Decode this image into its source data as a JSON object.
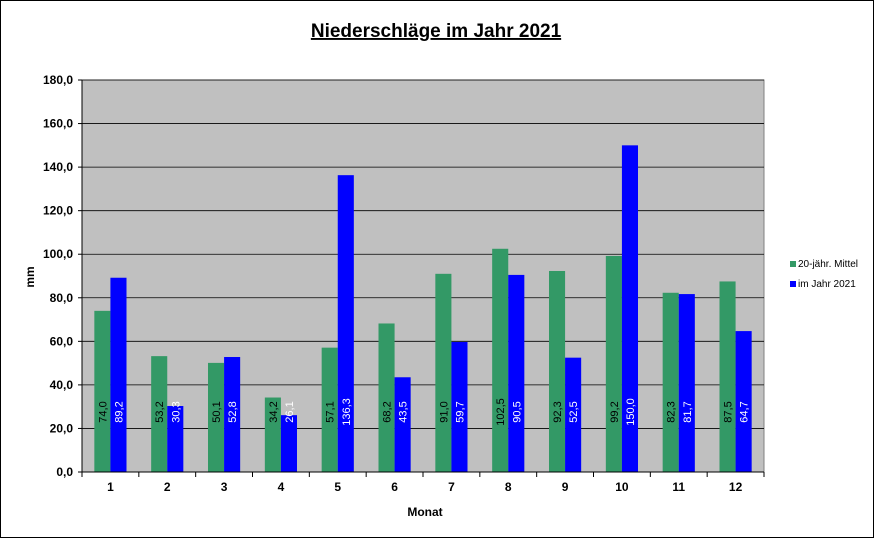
{
  "chart_data": {
    "type": "bar",
    "title": "Niederschläge im Jahr 2021",
    "xlabel": "Monat",
    "ylabel": "mm",
    "categories": [
      "1",
      "2",
      "3",
      "4",
      "5",
      "6",
      "7",
      "8",
      "9",
      "10",
      "11",
      "12"
    ],
    "ylim": [
      0,
      180
    ],
    "yticks": [
      "0,0",
      "20,0",
      "40,0",
      "60,0",
      "80,0",
      "100,0",
      "120,0",
      "140,0",
      "160,0",
      "180,0"
    ],
    "grid": true,
    "legend_position": "right",
    "series": [
      {
        "name": "20-jähr. Mittel",
        "color": "#339966",
        "values": [
          74.0,
          53.2,
          50.1,
          34.2,
          57.1,
          68.2,
          91.0,
          102.5,
          92.3,
          99.2,
          82.3,
          87.5
        ],
        "labels": [
          "74,0",
          "53,2",
          "50,1",
          "34,2",
          "57,1",
          "68,2",
          "91,0",
          "102,5",
          "92,3",
          "99,2",
          "82,3",
          "87,5"
        ]
      },
      {
        "name": "im Jahr 2021",
        "color": "#0000ff",
        "values": [
          89.2,
          30.3,
          52.8,
          26.1,
          136.3,
          43.5,
          59.7,
          90.5,
          52.5,
          150.0,
          81.7,
          64.7
        ],
        "labels": [
          "89,2",
          "30,3",
          "52,8",
          "26,1",
          "136,3",
          "43,5",
          "59,7",
          "90,5",
          "52,5",
          "150,0",
          "81,7",
          "64,7"
        ]
      }
    ],
    "plot_background": "#c0c0c0"
  }
}
